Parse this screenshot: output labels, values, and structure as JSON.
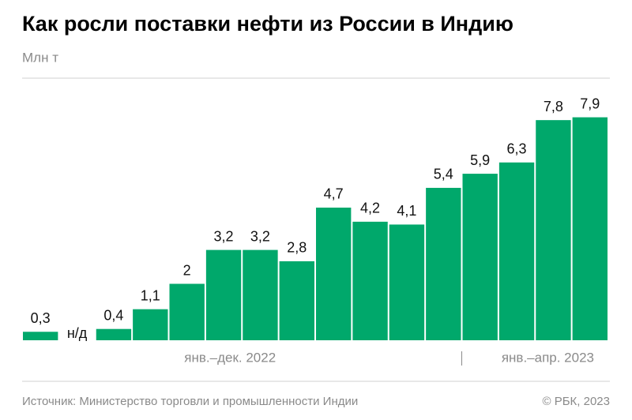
{
  "chart_data": {
    "type": "bar",
    "title": "Как росли поставки нефти из России в Индию",
    "subtitle": "Млн т",
    "categories": [
      null,
      null,
      null,
      null,
      null,
      null,
      null,
      null,
      null,
      null,
      null,
      null,
      null,
      null,
      null,
      null
    ],
    "values": [
      0.3,
      null,
      0.4,
      1.1,
      2,
      3.2,
      3.2,
      2.8,
      4.7,
      4.2,
      4.1,
      5.4,
      5.9,
      6.3,
      7.8,
      7.9
    ],
    "value_labels": [
      "0,3",
      "н/д",
      "0,4",
      "1,1",
      "2",
      "3,2",
      "3,2",
      "2,8",
      "4,7",
      "4,2",
      "4,1",
      "5,4",
      "5,9",
      "6,3",
      "7,8",
      "7,9"
    ],
    "color": "#00a86b",
    "ylim": [
      0,
      8
    ],
    "groups": [
      "янв.–дек. 2022",
      "янв.–апр. 2023"
    ],
    "source": "Источник: Министерство торговли и промышленности Индии",
    "copyright": "© РБК, 2023"
  }
}
